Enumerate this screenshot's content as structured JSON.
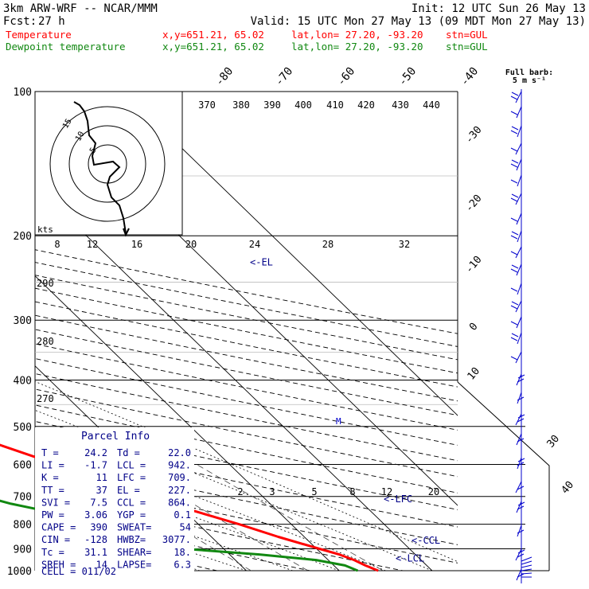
{
  "header": {
    "model": "3km ARW-WRF -- NCAR/MMM",
    "init": "Init: 12 UTC Sun 26 May 13",
    "fcst_label": "Fcst:",
    "fcst_value": "27 h",
    "valid": "Valid: 15 UTC Mon 27 May 13 (09 MDT Mon 27 May 13)",
    "temp_line": {
      "name": "Temperature",
      "xy": "x,y=651.21, 65.02",
      "latlon": "lat,lon= 27.20, -93.20",
      "stn": "stn=GUL"
    },
    "dew_line": {
      "name": "Dewpoint temperature",
      "xy": "x,y=651.21, 65.02",
      "latlon": "lat,lon= 27.20, -93.20",
      "stn": "stn=GUL"
    }
  },
  "colors": {
    "temperature": "#ff0000",
    "dewpoint": "#118811",
    "barbs": "#0000cc",
    "info_text": "#000088"
  },
  "wind_legend": {
    "title": "Full barb:",
    "value": "5 m s⁻¹"
  },
  "hodograph": {
    "units_label": "kts",
    "ring_labels": [
      "5",
      "10",
      "15"
    ]
  },
  "isotherm_top_labels": [
    "-80",
    "-70",
    "-60",
    "-50",
    "-40"
  ],
  "isotherm_right_labels": [
    "-30",
    "-20",
    "-10",
    "0",
    "10"
  ],
  "isotherm_outer_labels": [
    "30",
    "40"
  ],
  "theta_labels": [
    "370",
    "380",
    "390",
    "400",
    "410",
    "420",
    "430",
    "440"
  ],
  "mixing_ratio_labels_top": [
    "8",
    "12",
    "16",
    "20",
    "24",
    "28",
    "32"
  ],
  "mixing_ratio_labels_low": [
    "2",
    "3",
    "5",
    "8",
    "12",
    "20"
  ],
  "dry_adiabat_labels": [
    "290",
    "280",
    "270"
  ],
  "level_markers": {
    "el": "<-EL",
    "lfc": "<-LFC",
    "ccl": "<-CCL",
    "lcl": "<-LCL"
  },
  "parcel_info": {
    "title": "Parcel Info",
    "rows": [
      [
        "T  =",
        "24.2",
        "Td =",
        "22.0"
      ],
      [
        "LI =",
        "-1.7",
        "LCL =",
        "942."
      ],
      [
        "K  =",
        "11",
        "LFC =",
        "709."
      ],
      [
        "TT =",
        "37",
        "EL  =",
        "227."
      ],
      [
        "SVI =",
        "7.5",
        "CCL =",
        "864."
      ],
      [
        "PW =",
        "3.06",
        "YGP =",
        "0.1"
      ],
      [
        "CAPE =",
        "390",
        "SWEAT=",
        "54"
      ],
      [
        "CIN =",
        "-128",
        "HWBZ=",
        "3077."
      ],
      [
        "Tc =",
        "31.1",
        "SHEAR=",
        "18."
      ],
      [
        "SREH =",
        "14",
        "LAPSE=",
        "6.3"
      ]
    ],
    "cell": "CELL = 011/02"
  },
  "chart_data": {
    "type": "line",
    "diagram": "skew-T log-p",
    "y_axis": {
      "label": "",
      "scale": "log",
      "range_hpa": [
        1000,
        100
      ]
    },
    "y_ticks": [
      "100",
      "200",
      "300",
      "400",
      "500",
      "600",
      "700",
      "800",
      "900",
      "1000"
    ],
    "series": [
      {
        "name": "Temperature",
        "points": [
          [
            1000,
            24.2
          ],
          [
            975,
            23.4
          ],
          [
            950,
            22.8
          ],
          [
            925,
            21.8
          ],
          [
            900,
            20.3
          ],
          [
            850,
            17.2
          ],
          [
            800,
            14.4
          ],
          [
            750,
            11.0
          ],
          [
            700,
            7.8
          ],
          [
            650,
            4.7
          ],
          [
            600,
            1.4
          ],
          [
            550,
            -2.3
          ],
          [
            500,
            -6.0
          ],
          [
            450,
            -10.6
          ],
          [
            400,
            -16.0
          ],
          [
            350,
            -22.6
          ],
          [
            300,
            -30.5
          ],
          [
            250,
            -40.5
          ],
          [
            200,
            -53.5
          ],
          [
            175,
            -61.5
          ],
          [
            150,
            -67.0
          ],
          [
            135,
            -68.5
          ],
          [
            125,
            -67.0
          ],
          [
            115,
            -64.0
          ],
          [
            100,
            -61.0
          ]
        ]
      },
      {
        "name": "Dewpoint temperature",
        "points": [
          [
            1000,
            22.0
          ],
          [
            975,
            21.2
          ],
          [
            950,
            18.7
          ],
          [
            925,
            13.2
          ],
          [
            900,
            5.7
          ],
          [
            875,
            3.9
          ],
          [
            850,
            3.7
          ],
          [
            800,
            2.6
          ],
          [
            750,
            -5.0
          ],
          [
            725,
            -7.9
          ],
          [
            700,
            -10.0
          ],
          [
            650,
            -10.3
          ],
          [
            600,
            -10.2
          ],
          [
            550,
            -12.5
          ],
          [
            500,
            -16.7
          ],
          [
            450,
            -20.0
          ],
          [
            400,
            -25.6
          ],
          [
            375,
            -35.2
          ],
          [
            350,
            -40.5
          ],
          [
            300,
            -50.2
          ],
          [
            250,
            -62.5
          ],
          [
            200,
            -79.5
          ],
          [
            175,
            -83.5
          ],
          [
            150,
            -85.0
          ],
          [
            125,
            -85.5
          ],
          [
            100,
            -88.0
          ]
        ]
      }
    ],
    "parcel_levels_hpa": {
      "LCL": 942,
      "CCL": 864,
      "LFC": 709,
      "EL": 227
    }
  }
}
